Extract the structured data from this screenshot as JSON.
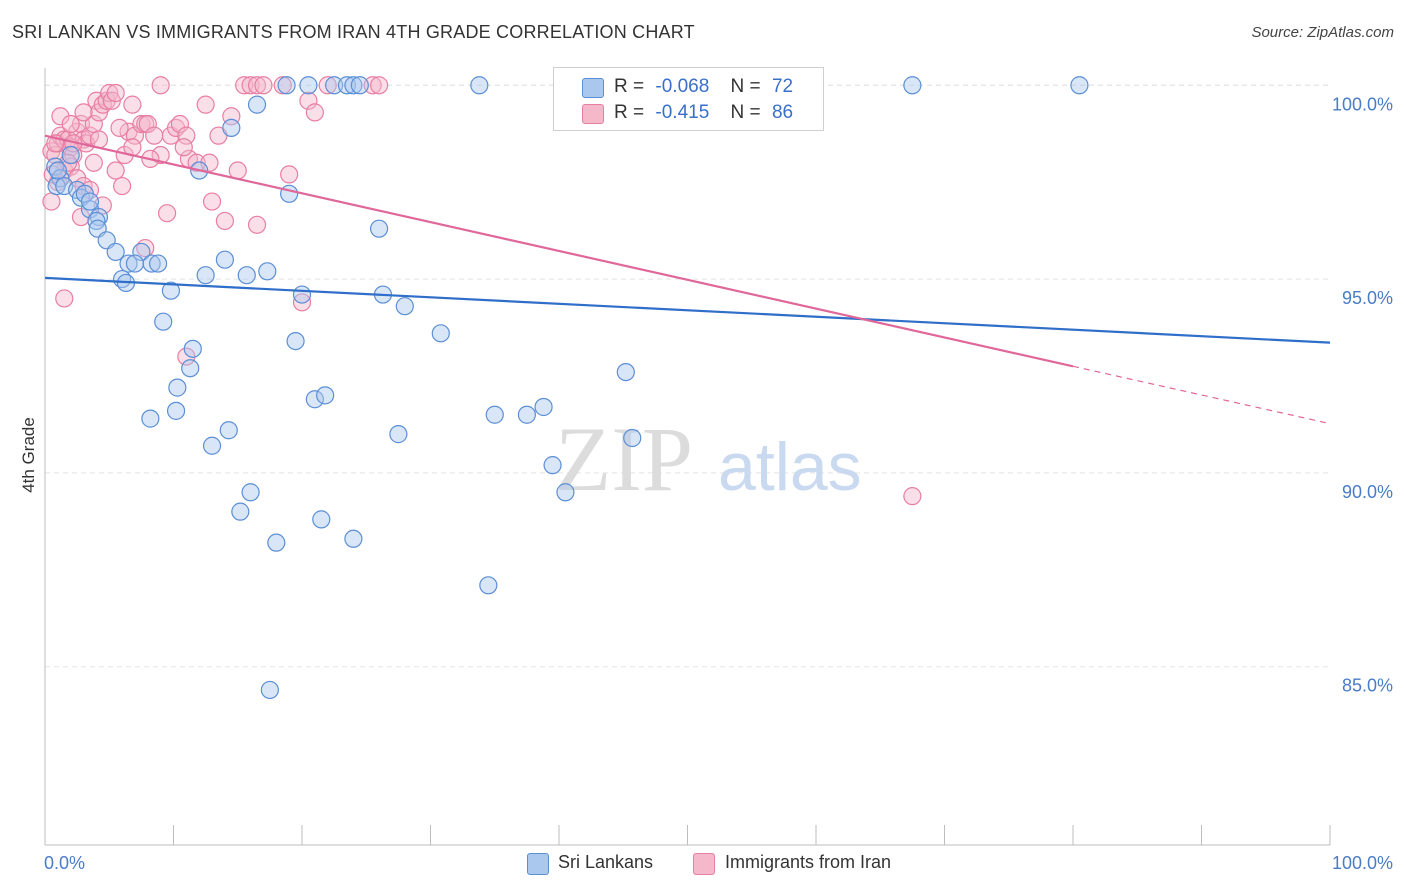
{
  "title": "SRI LANKAN VS IMMIGRANTS FROM IRAN 4TH GRADE CORRELATION CHART",
  "source": "Source: ZipAtlas.com",
  "watermark": {
    "zip": "ZIP",
    "atlas": "atlas"
  },
  "colors": {
    "blue_fill": "#aac8ee",
    "blue_stroke": "#5b8fd6",
    "blue_line": "#2f6ec9",
    "pink_fill": "#f5b8cb",
    "pink_stroke": "#e87fa3",
    "pink_line": "#e0679a",
    "grid": "#e3e3e3",
    "tick_label": "#4a7cc7"
  },
  "legend": {
    "rows": [
      {
        "r_label": "R =",
        "r_value": "-0.068",
        "n_label": "N =",
        "n_value": "72"
      },
      {
        "r_label": "R =",
        "r_value": "-0.415",
        "n_label": "N =",
        "n_value": "86"
      }
    ]
  },
  "bottom_legend": {
    "series1": "Sri Lankans",
    "series2": "Immigrants from Iran"
  },
  "chart_data": {
    "type": "scatter",
    "title": "SRI LANKAN VS IMMIGRANTS FROM IRAN 4TH GRADE CORRELATION CHART",
    "xlabel": "",
    "ylabel": "4th Grade",
    "xlim": [
      0,
      100
    ],
    "ylim": [
      80.4,
      100.6
    ],
    "x_tick_labels": {
      "left": "0.0%",
      "right": "100.0%"
    },
    "y_ticks": [
      {
        "value": 100,
        "label": "100.0%"
      },
      {
        "value": 95,
        "label": "95.0%"
      },
      {
        "value": 90,
        "label": "90.0%"
      },
      {
        "value": 85,
        "label": "85.0%"
      }
    ],
    "legend_position": "top-center",
    "series": [
      {
        "name": "Sri Lankans",
        "R": -0.068,
        "N": 72,
        "trend": {
          "x": [
            0,
            100
          ],
          "y": [
            95.03,
            93.36
          ]
        },
        "points": [
          [
            0.8,
            97.9
          ],
          [
            1.2,
            97.6
          ],
          [
            0.9,
            97.4
          ],
          [
            1.5,
            97.4
          ],
          [
            2.5,
            97.3
          ],
          [
            2.8,
            97.1
          ],
          [
            3.1,
            97.2
          ],
          [
            3.5,
            96.8
          ],
          [
            4.2,
            96.6
          ],
          [
            4.0,
            96.5
          ],
          [
            4.1,
            96.3
          ],
          [
            4.8,
            96.0
          ],
          [
            5.5,
            95.7
          ],
          [
            7.5,
            95.7
          ],
          [
            6.5,
            95.4
          ],
          [
            7.0,
            95.4
          ],
          [
            8.3,
            95.4
          ],
          [
            8.8,
            95.4
          ],
          [
            6.0,
            95.0
          ],
          [
            6.3,
            94.9
          ],
          [
            12.5,
            95.1
          ],
          [
            15.7,
            95.1
          ],
          [
            17.3,
            95.2
          ],
          [
            14.0,
            95.5
          ],
          [
            9.8,
            94.7
          ],
          [
            20.0,
            94.6
          ],
          [
            26.3,
            94.6
          ],
          [
            28.0,
            94.3
          ],
          [
            9.2,
            93.9
          ],
          [
            30.8,
            93.6
          ],
          [
            19.5,
            93.4
          ],
          [
            11.5,
            93.2
          ],
          [
            11.3,
            92.7
          ],
          [
            10.3,
            92.2
          ],
          [
            10.2,
            91.6
          ],
          [
            8.2,
            91.4
          ],
          [
            21.0,
            91.9
          ],
          [
            21.8,
            92.0
          ],
          [
            35.0,
            91.5
          ],
          [
            37.5,
            91.5
          ],
          [
            38.8,
            91.7
          ],
          [
            45.2,
            92.6
          ],
          [
            13.0,
            90.7
          ],
          [
            14.3,
            91.1
          ],
          [
            27.5,
            91.0
          ],
          [
            45.7,
            90.9
          ],
          [
            39.5,
            90.2
          ],
          [
            40.5,
            89.5
          ],
          [
            16.0,
            89.5
          ],
          [
            15.2,
            89.0
          ],
          [
            21.5,
            88.8
          ],
          [
            24.0,
            88.3
          ],
          [
            18.0,
            88.2
          ],
          [
            34.5,
            87.1
          ],
          [
            17.5,
            84.4
          ],
          [
            2.0,
            98.2
          ],
          [
            14.5,
            98.9
          ],
          [
            16.5,
            99.5
          ],
          [
            18.8,
            100.0
          ],
          [
            20.5,
            100.0
          ],
          [
            22.5,
            100.0
          ],
          [
            23.5,
            100.0
          ],
          [
            24.0,
            100.0
          ],
          [
            24.5,
            100.0
          ],
          [
            33.8,
            100.0
          ],
          [
            67.5,
            100.0
          ],
          [
            80.5,
            100.0
          ],
          [
            12.0,
            97.8
          ],
          [
            19.0,
            97.2
          ],
          [
            26.0,
            96.3
          ],
          [
            3.5,
            97.0
          ],
          [
            1.0,
            97.8
          ]
        ]
      },
      {
        "name": "Immigrants from Iran",
        "R": -0.415,
        "N": 86,
        "trend": {
          "x": [
            0,
            80
          ],
          "y": [
            98.7,
            92.75
          ]
        },
        "trend_dashed": {
          "x": [
            80,
            100
          ],
          "y": [
            92.75,
            91.27
          ]
        },
        "points": [
          [
            0.5,
            98.3
          ],
          [
            0.8,
            98.2
          ],
          [
            1.0,
            98.5
          ],
          [
            1.2,
            98.7
          ],
          [
            1.5,
            98.6
          ],
          [
            1.8,
            98.6
          ],
          [
            2.0,
            98.4
          ],
          [
            2.2,
            98.2
          ],
          [
            2.5,
            98.8
          ],
          [
            2.8,
            99.0
          ],
          [
            3.0,
            98.6
          ],
          [
            3.2,
            98.5
          ],
          [
            3.5,
            98.7
          ],
          [
            3.8,
            99.0
          ],
          [
            4.0,
            99.6
          ],
          [
            4.2,
            99.3
          ],
          [
            4.5,
            99.5
          ],
          [
            4.8,
            99.6
          ],
          [
            5.0,
            99.8
          ],
          [
            5.2,
            99.6
          ],
          [
            5.5,
            99.8
          ],
          [
            6.5,
            98.8
          ],
          [
            6.8,
            99.5
          ],
          [
            7.0,
            98.7
          ],
          [
            7.5,
            99.0
          ],
          [
            7.8,
            99.0
          ],
          [
            8.0,
            99.0
          ],
          [
            8.5,
            98.7
          ],
          [
            9.0,
            98.2
          ],
          [
            9.8,
            98.7
          ],
          [
            10.2,
            98.9
          ],
          [
            10.5,
            99.0
          ],
          [
            11.0,
            98.7
          ],
          [
            11.2,
            98.1
          ],
          [
            11.8,
            98.0
          ],
          [
            12.5,
            99.5
          ],
          [
            12.8,
            98.0
          ],
          [
            13.5,
            98.7
          ],
          [
            14.0,
            96.5
          ],
          [
            14.5,
            99.2
          ],
          [
            15.0,
            97.8
          ],
          [
            15.5,
            100.0
          ],
          [
            16.0,
            100.0
          ],
          [
            16.5,
            100.0
          ],
          [
            17.0,
            100.0
          ],
          [
            18.5,
            100.0
          ],
          [
            19.0,
            97.7
          ],
          [
            20.5,
            99.6
          ],
          [
            21.0,
            99.3
          ],
          [
            22.0,
            100.0
          ],
          [
            25.5,
            100.0
          ],
          [
            26.0,
            100.0
          ],
          [
            1.0,
            97.5
          ],
          [
            1.5,
            97.8
          ],
          [
            2.0,
            97.9
          ],
          [
            2.5,
            97.6
          ],
          [
            3.0,
            97.4
          ],
          [
            3.5,
            97.3
          ],
          [
            5.5,
            97.8
          ],
          [
            6.0,
            97.4
          ],
          [
            6.2,
            98.2
          ],
          [
            7.8,
            95.8
          ],
          [
            9.5,
            96.7
          ],
          [
            13.0,
            97.0
          ],
          [
            16.5,
            96.4
          ],
          [
            20.0,
            94.4
          ],
          [
            1.5,
            94.5
          ],
          [
            11.0,
            93.0
          ],
          [
            67.5,
            89.4
          ],
          [
            0.5,
            97.0
          ],
          [
            2.8,
            96.6
          ],
          [
            4.5,
            96.9
          ],
          [
            0.8,
            98.5
          ],
          [
            1.2,
            99.2
          ],
          [
            2.0,
            99.0
          ],
          [
            3.0,
            99.3
          ],
          [
            6.8,
            98.4
          ],
          [
            8.2,
            98.1
          ],
          [
            10.8,
            98.4
          ],
          [
            5.8,
            98.9
          ],
          [
            3.8,
            98.0
          ],
          [
            4.2,
            98.6
          ],
          [
            1.8,
            98.0
          ],
          [
            0.6,
            97.7
          ],
          [
            2.2,
            98.5
          ],
          [
            9.0,
            100.0
          ]
        ]
      }
    ]
  }
}
